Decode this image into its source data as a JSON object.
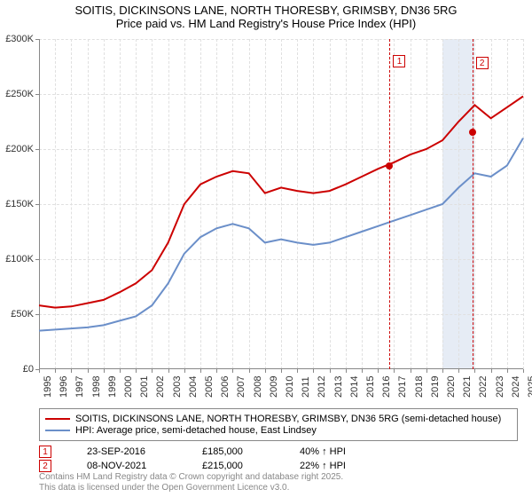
{
  "title_line1": "SOITIS, DICKINSONS LANE, NORTH THORESBY, GRIMSBY, DN36 5RG",
  "title_line2": "Price paid vs. HM Land Registry's House Price Index (HPI)",
  "chart": {
    "type": "line",
    "x_start_year": 1995,
    "x_end_year": 2025,
    "ylim": [
      0,
      300000
    ],
    "ytick_step": 50000,
    "y_labels": [
      "£0",
      "£50K",
      "£100K",
      "£150K",
      "£200K",
      "£250K",
      "£300K"
    ],
    "background_color": "#ffffff",
    "grid_color": "#e0e0e0",
    "axis_color": "#888888",
    "series": [
      {
        "name": "property",
        "label": "SOITIS, DICKINSONS LANE, NORTH THORESBY, GRIMSBY, DN36 5RG (semi-detached house)",
        "color": "#cc0000",
        "line_width": 2,
        "data": [
          [
            1995,
            58000
          ],
          [
            1996,
            56000
          ],
          [
            1997,
            57000
          ],
          [
            1998,
            60000
          ],
          [
            1999,
            63000
          ],
          [
            2000,
            70000
          ],
          [
            2001,
            78000
          ],
          [
            2002,
            90000
          ],
          [
            2003,
            115000
          ],
          [
            2004,
            150000
          ],
          [
            2005,
            168000
          ],
          [
            2006,
            175000
          ],
          [
            2007,
            180000
          ],
          [
            2008,
            178000
          ],
          [
            2009,
            160000
          ],
          [
            2010,
            165000
          ],
          [
            2011,
            162000
          ],
          [
            2012,
            160000
          ],
          [
            2013,
            162000
          ],
          [
            2014,
            168000
          ],
          [
            2015,
            175000
          ],
          [
            2016,
            182000
          ],
          [
            2017,
            188000
          ],
          [
            2018,
            195000
          ],
          [
            2019,
            200000
          ],
          [
            2020,
            208000
          ],
          [
            2021,
            225000
          ],
          [
            2022,
            240000
          ],
          [
            2023,
            228000
          ],
          [
            2024,
            238000
          ],
          [
            2025,
            248000
          ]
        ]
      },
      {
        "name": "hpi",
        "label": "HPI: Average price, semi-detached house, East Lindsey",
        "color": "#6b8fc9",
        "line_width": 2,
        "data": [
          [
            1995,
            35000
          ],
          [
            1996,
            36000
          ],
          [
            1997,
            37000
          ],
          [
            1998,
            38000
          ],
          [
            1999,
            40000
          ],
          [
            2000,
            44000
          ],
          [
            2001,
            48000
          ],
          [
            2002,
            58000
          ],
          [
            2003,
            78000
          ],
          [
            2004,
            105000
          ],
          [
            2005,
            120000
          ],
          [
            2006,
            128000
          ],
          [
            2007,
            132000
          ],
          [
            2008,
            128000
          ],
          [
            2009,
            115000
          ],
          [
            2010,
            118000
          ],
          [
            2011,
            115000
          ],
          [
            2012,
            113000
          ],
          [
            2013,
            115000
          ],
          [
            2014,
            120000
          ],
          [
            2015,
            125000
          ],
          [
            2016,
            130000
          ],
          [
            2017,
            135000
          ],
          [
            2018,
            140000
          ],
          [
            2019,
            145000
          ],
          [
            2020,
            150000
          ],
          [
            2021,
            165000
          ],
          [
            2022,
            178000
          ],
          [
            2023,
            175000
          ],
          [
            2024,
            185000
          ],
          [
            2025,
            210000
          ]
        ]
      }
    ],
    "band": {
      "from_year": 2020,
      "to_year": 2022,
      "color": "#e6ecf5"
    },
    "markers": [
      {
        "n": "1",
        "year": 2016.73,
        "value": 185000
      },
      {
        "n": "2",
        "year": 2021.85,
        "value": 215000
      }
    ]
  },
  "legend": {
    "items": [
      {
        "color": "#cc0000",
        "label": "SOITIS, DICKINSONS LANE, NORTH THORESBY, GRIMSBY, DN36 5RG (semi-detached house)"
      },
      {
        "color": "#6b8fc9",
        "label": "HPI: Average price, semi-detached house, East Lindsey"
      }
    ]
  },
  "callouts": [
    {
      "n": "1",
      "date": "23-SEP-2016",
      "price": "£185,000",
      "pct": "40% ↑ HPI"
    },
    {
      "n": "2",
      "date": "08-NOV-2021",
      "price": "£215,000",
      "pct": "22% ↑ HPI"
    }
  ],
  "footer_line1": "Contains HM Land Registry data © Crown copyright and database right 2025.",
  "footer_line2": "This data is licensed under the Open Government Licence v3.0."
}
